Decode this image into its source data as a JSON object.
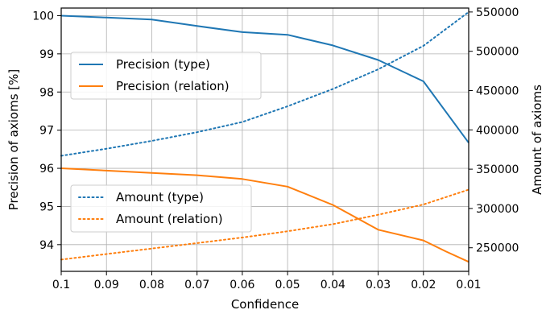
{
  "chart_data": {
    "type": "line",
    "xlabel": "Confidence",
    "ylabel_left": "Precision of axioms [%]",
    "ylabel_right": "Amount of axioms",
    "x_ticks": [
      "0.1",
      "0.09",
      "0.08",
      "0.07",
      "0.06",
      "0.05",
      "0.04",
      "0.03",
      "0.02",
      "0.01"
    ],
    "x_tick_values": [
      0.1,
      0.09,
      0.08,
      0.07,
      0.06,
      0.05,
      0.04,
      0.03,
      0.02,
      0.01
    ],
    "xlim": [
      0.1,
      0.01
    ],
    "ylim_left": [
      93.3,
      100.2
    ],
    "ylim_right": [
      220000,
      555000
    ],
    "y_ticks_left": [
      94,
      95,
      96,
      97,
      98,
      99,
      100
    ],
    "y_ticks_right": [
      250000,
      300000,
      350000,
      400000,
      450000,
      500000,
      550000
    ],
    "y_ticks_right_labels": [
      "250000",
      "300000",
      "350000",
      "400000",
      "450000",
      "500000",
      "550000"
    ],
    "grid": true,
    "series": [
      {
        "name": "Precision (type)",
        "axis": "left",
        "style": "solid",
        "color": "#1f77b4",
        "x": [
          0.1,
          0.09,
          0.08,
          0.07,
          0.06,
          0.05,
          0.04,
          0.03,
          0.02,
          0.01
        ],
        "y": [
          100.0,
          99.95,
          99.9,
          99.73,
          99.57,
          99.5,
          99.22,
          98.84,
          98.28,
          96.67
        ]
      },
      {
        "name": "Precision (relation)",
        "axis": "left",
        "style": "solid",
        "color": "#ff7f0e",
        "x": [
          0.1,
          0.09,
          0.08,
          0.07,
          0.06,
          0.05,
          0.04,
          0.03,
          0.02,
          0.015,
          0.01
        ],
        "y": [
          96.0,
          95.94,
          95.88,
          95.82,
          95.72,
          95.52,
          95.04,
          94.39,
          94.11,
          93.82,
          93.55
        ]
      },
      {
        "name": "Amount (type)",
        "axis": "right",
        "style": "dotted",
        "color": "#1f77b4",
        "x": [
          0.1,
          0.09,
          0.08,
          0.07,
          0.06,
          0.05,
          0.04,
          0.03,
          0.02,
          0.01
        ],
        "y": [
          367000,
          376000,
          386000,
          397000,
          410000,
          430000,
          452000,
          477000,
          507000,
          550000
        ]
      },
      {
        "name": "Amount (relation)",
        "axis": "right",
        "style": "dotted",
        "color": "#ff7f0e",
        "x": [
          0.1,
          0.09,
          0.08,
          0.07,
          0.06,
          0.05,
          0.04,
          0.03,
          0.02,
          0.01
        ],
        "y": [
          235000,
          242000,
          249000,
          256000,
          263000,
          271000,
          280000,
          292000,
          305000,
          324000
        ]
      }
    ],
    "legends": [
      {
        "placement": "upper-left",
        "entries": [
          "Precision (type)",
          "Precision (relation)"
        ]
      },
      {
        "placement": "lower-left",
        "entries": [
          "Amount (type)",
          "Amount (relation)"
        ]
      }
    ]
  }
}
